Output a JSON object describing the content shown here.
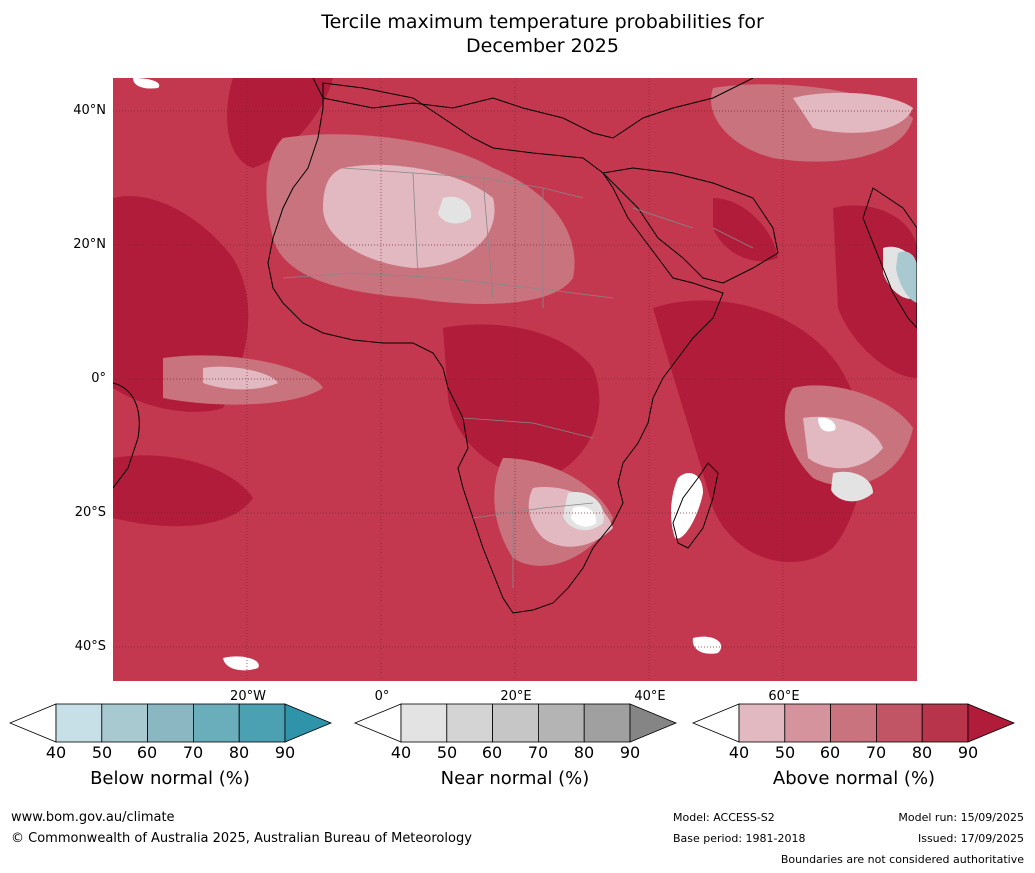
{
  "title": "Tercile maximum temperature probabilities for\nDecember 2025",
  "map": {
    "lat_labels": [
      "40°N",
      "20°N",
      "0°",
      "20°S",
      "40°S"
    ],
    "lon_labels": [
      "20°W",
      "0°",
      "20°E",
      "40°E",
      "60°E"
    ]
  },
  "legends": [
    {
      "title": "Below normal (%)",
      "ticks": [
        "40",
        "50",
        "60",
        "70",
        "80",
        "90"
      ],
      "colors": [
        "#c7e0e7",
        "#a8c9cf",
        "#8ab7c2",
        "#6aadbb",
        "#4ba0b2",
        "#2f93aa"
      ]
    },
    {
      "title": "Near normal (%)",
      "ticks": [
        "40",
        "50",
        "60",
        "70",
        "80",
        "90"
      ],
      "colors": [
        "#e3e3e3",
        "#d4d4d4",
        "#c6c6c6",
        "#b4b4b4",
        "#a0a0a0",
        "#858585"
      ]
    },
    {
      "title": "Above normal (%)",
      "ticks": [
        "40",
        "50",
        "60",
        "70",
        "80",
        "90"
      ],
      "colors": [
        "#e2b9c0",
        "#d5939e",
        "#c9737e",
        "#c15566",
        "#b8344a",
        "#b11c3a"
      ]
    }
  ],
  "footer": {
    "website": "www.bom.gov.au/climate",
    "copyright": "© Commonwealth of Australia 2025, Australian Bureau of Meteorology",
    "model": "Model: ACCESS-S2",
    "base_period": "Base period: 1981-2018",
    "model_run": "Model run: 15/09/2025",
    "issued": "Issued: 17/09/2025",
    "disclaimer": "Boundaries are not considered authoritative"
  }
}
